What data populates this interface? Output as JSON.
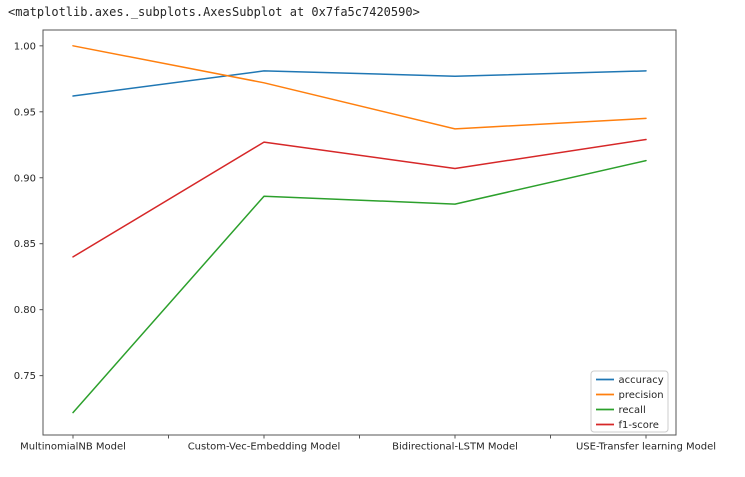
{
  "header": {
    "repr_text": "<matplotlib.axes._subplots.AxesSubplot at 0x7fa5c7420590>"
  },
  "chart_data": {
    "type": "line",
    "title": "",
    "xlabel": "",
    "ylabel": "",
    "categories": [
      "MultinomialNB Model",
      "Custom-Vec-Embedding Model",
      "Bidirectional-LSTM Model",
      "USE-Transfer learning Model"
    ],
    "series": [
      {
        "name": "accuracy",
        "color": "#1f77b4",
        "values": [
          0.962,
          0.981,
          0.977,
          0.981
        ]
      },
      {
        "name": "precision",
        "color": "#ff7f0e",
        "values": [
          1.0,
          0.972,
          0.937,
          0.945
        ]
      },
      {
        "name": "recall",
        "color": "#2ca02c",
        "values": [
          0.722,
          0.886,
          0.88,
          0.913
        ]
      },
      {
        "name": "f1-score",
        "color": "#d62728",
        "values": [
          0.84,
          0.927,
          0.907,
          0.929
        ]
      }
    ],
    "ylim": [
      0.705,
      1.012
    ],
    "yticks": [
      1.0,
      0.95,
      0.9,
      0.85,
      0.8,
      0.75
    ],
    "ytick_labels": [
      "1.00",
      "0.95",
      "0.90",
      "0.85",
      "0.80",
      "0.75"
    ],
    "xtick_positions": [
      0,
      0.5,
      1,
      1.5,
      2,
      2.5,
      3
    ],
    "grid": false,
    "legend": {
      "position": "lower right",
      "labels": [
        "accuracy",
        "precision",
        "recall",
        "f1-score"
      ]
    }
  },
  "colors": {
    "background": "#ffffff",
    "spine": "#555555",
    "tick_text": "#262626",
    "legend_border": "#cccccc",
    "legend_fill": "#ffffff"
  }
}
